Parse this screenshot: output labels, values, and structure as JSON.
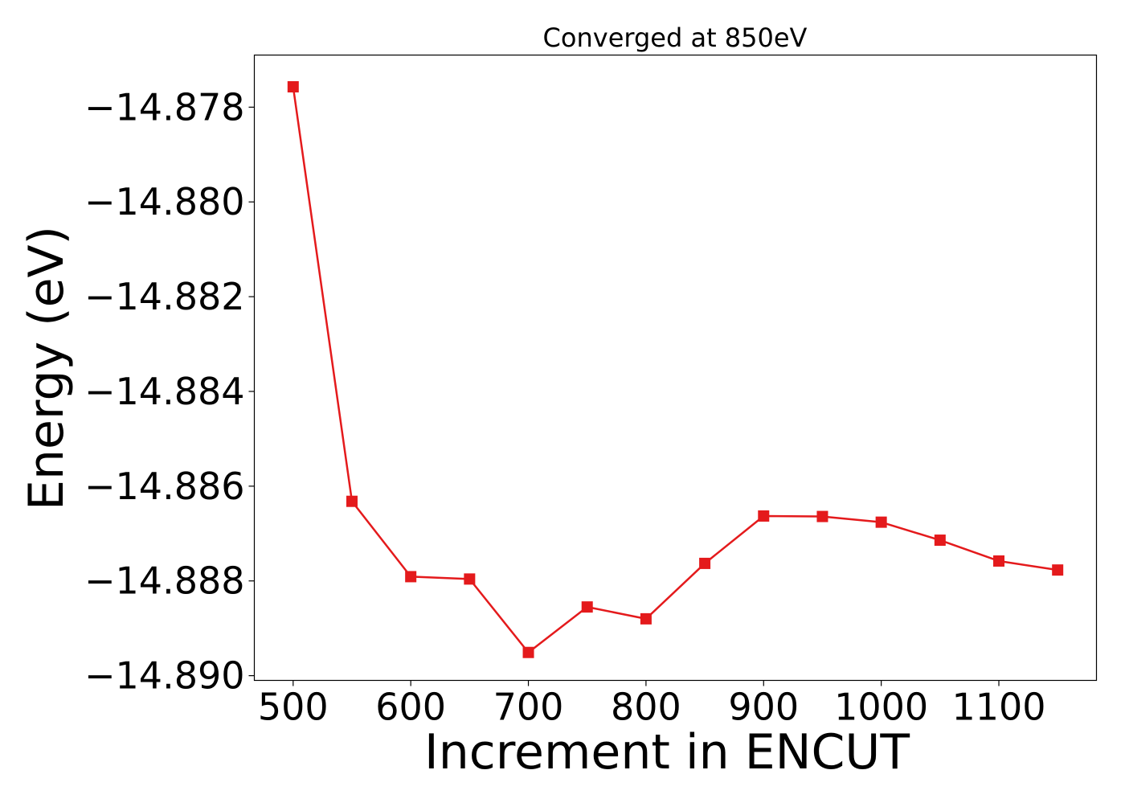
{
  "chart_data": {
    "type": "line",
    "title": "Converged at 850eV",
    "xlabel": "Increment in ENCUT",
    "ylabel": "Energy (eV)",
    "xlim": [
      467,
      1183
    ],
    "ylim": [
      -14.8901,
      -14.8769
    ],
    "xticks": [
      500,
      600,
      700,
      800,
      900,
      1000,
      1100
    ],
    "yticks": [
      -14.878,
      -14.88,
      -14.882,
      -14.884,
      -14.886,
      -14.888,
      -14.89
    ],
    "ytick_labels": [
      "−14.878",
      "−14.880",
      "−14.882",
      "−14.884",
      "−14.886",
      "−14.888",
      "−14.890"
    ],
    "grid": false,
    "series": [
      {
        "color": "#e41a1c",
        "marker": "square",
        "x": [
          500,
          550,
          600,
          650,
          700,
          750,
          800,
          850,
          900,
          950,
          1000,
          1050,
          1100,
          1150
        ],
        "y": [
          -14.87757,
          -14.88632,
          -14.88791,
          -14.88796,
          -14.88951,
          -14.88855,
          -14.8888,
          -14.88763,
          -14.88663,
          -14.88664,
          -14.88676,
          -14.88714,
          -14.88758,
          -14.88777
        ]
      }
    ]
  }
}
